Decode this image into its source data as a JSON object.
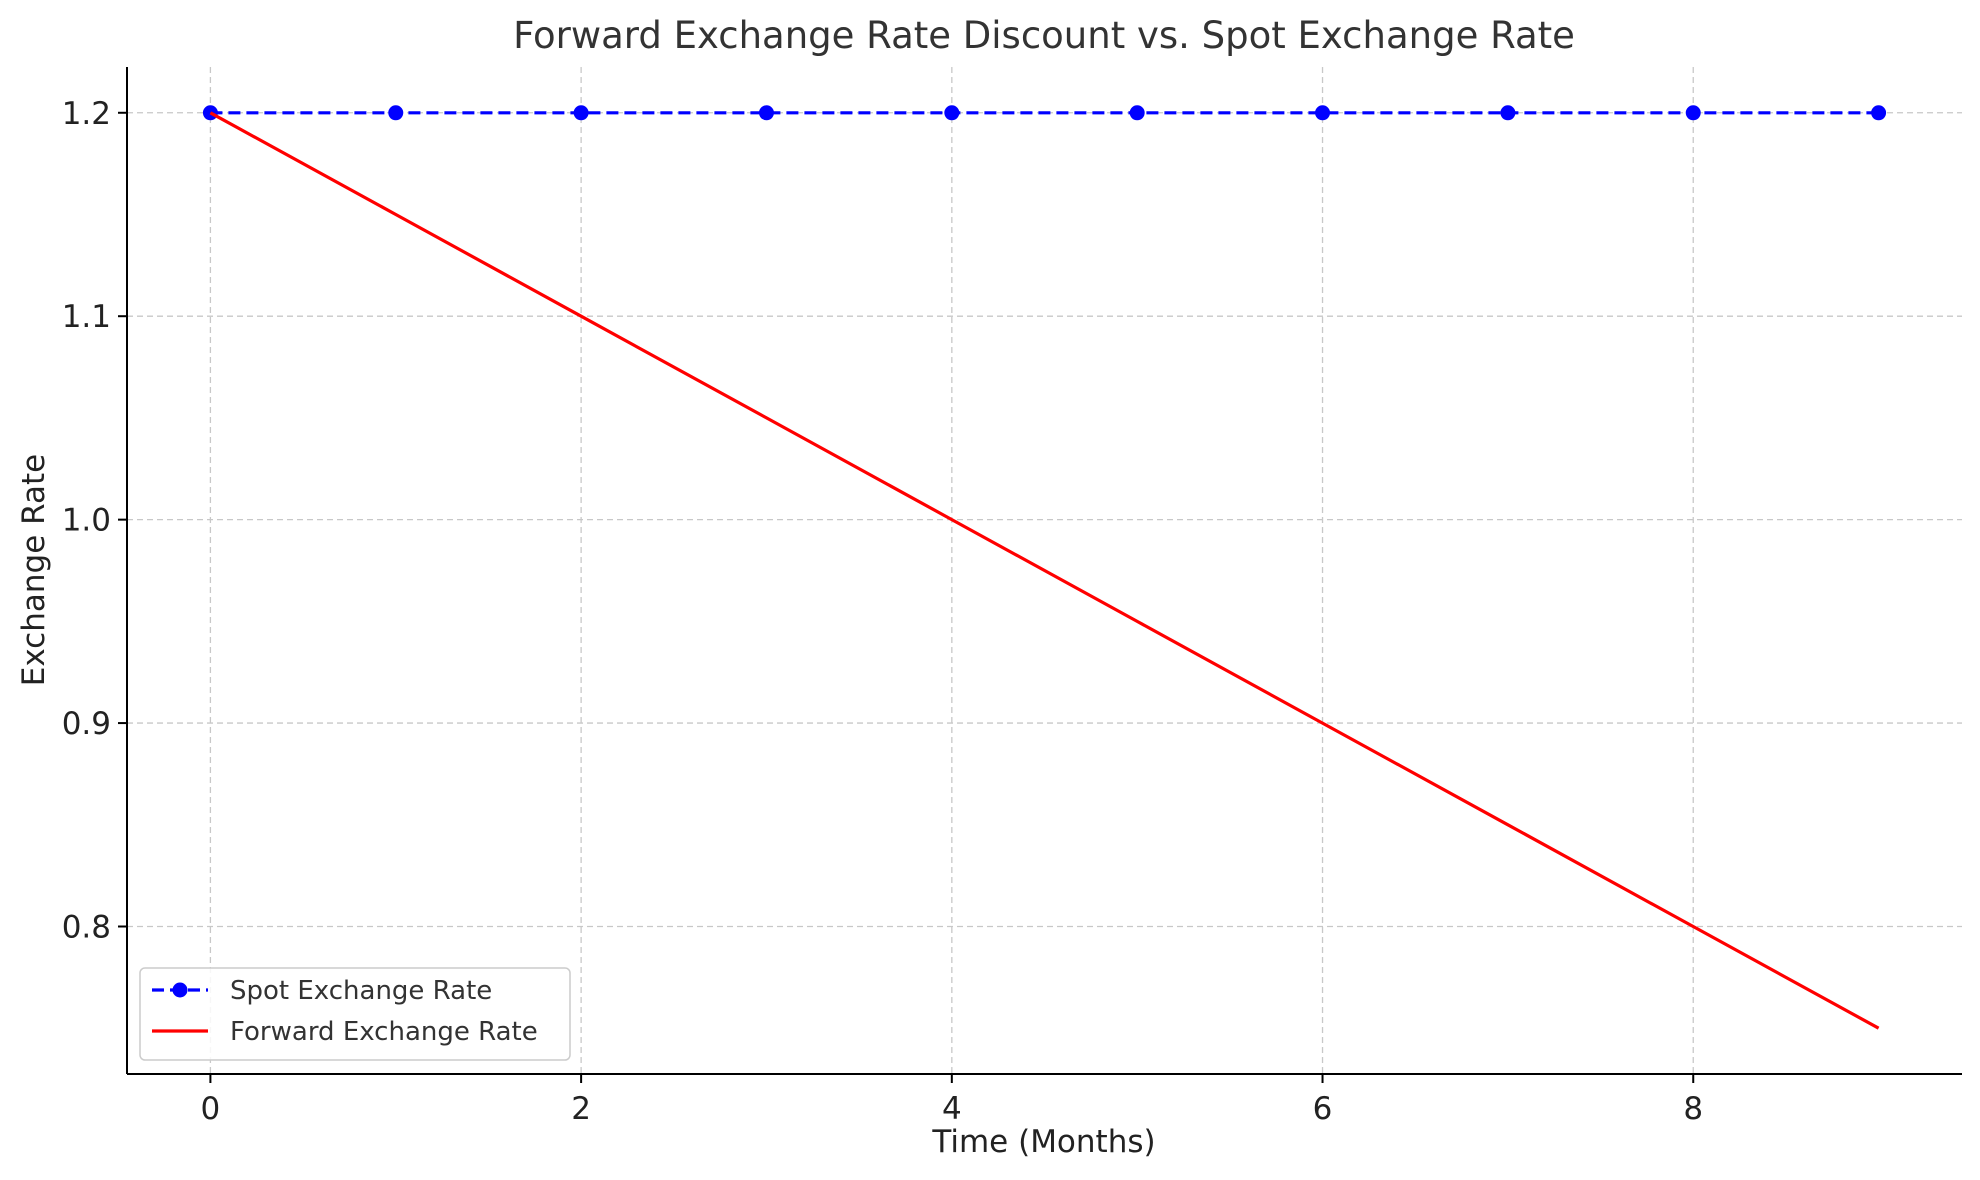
{
  "chart_data": {
    "type": "line",
    "title": "Forward Exchange Rate Discount vs. Spot Exchange Rate",
    "xlabel": "Time (Months)",
    "ylabel": "Exchange Rate",
    "x": [
      0,
      1,
      2,
      3,
      4,
      5,
      6,
      7,
      8,
      9
    ],
    "xlim": [
      -0.45,
      9.45
    ],
    "ylim": [
      0.7275,
      1.2225
    ],
    "xticks": [
      0,
      2,
      4,
      6,
      8
    ],
    "yticks": [
      0.8,
      0.9,
      1.0,
      1.1,
      1.2
    ],
    "ytick_labels": [
      "0.8",
      "0.9",
      "1.0",
      "1.1",
      "1.2"
    ],
    "grid": true,
    "legend_position": "lower-left",
    "series": [
      {
        "name": "Spot Exchange Rate",
        "values": [
          1.2,
          1.2,
          1.2,
          1.2,
          1.2,
          1.2,
          1.2,
          1.2,
          1.2,
          1.2
        ],
        "color": "#0000ff",
        "line_style": "dashed",
        "marker": "circle"
      },
      {
        "name": "Forward Exchange Rate",
        "values": [
          1.2,
          1.15,
          1.1,
          1.05,
          1.0,
          0.95,
          0.9,
          0.85,
          0.8,
          0.75
        ],
        "color": "#ff0000",
        "line_style": "solid",
        "marker": "none"
      }
    ]
  }
}
